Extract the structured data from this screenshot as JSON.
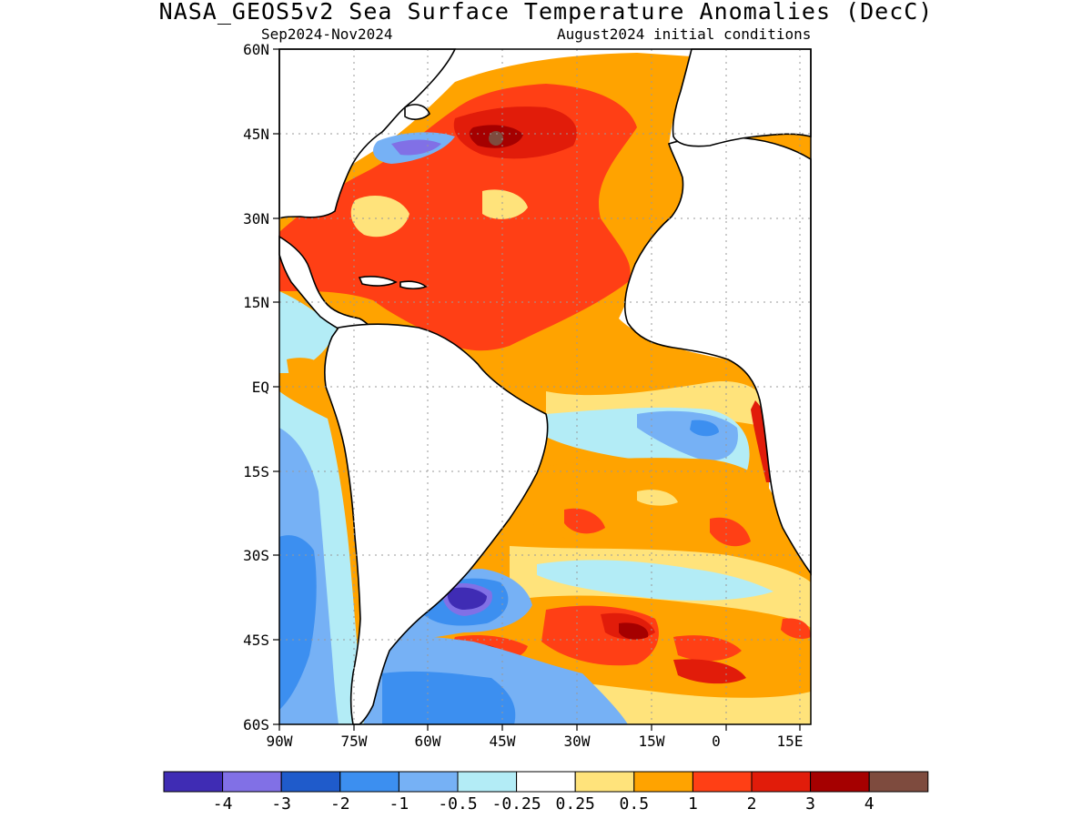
{
  "header": {
    "title": "NASA_GEOS5v2 Sea Surface Temperature Anomalies (DecC)",
    "period": "Sep2024-Nov2024",
    "initial_conditions": "August2024 initial conditions"
  },
  "map": {
    "lat_labels": [
      "60N",
      "45N",
      "30N",
      "15N",
      "EQ",
      "15S",
      "30S",
      "45S",
      "60S"
    ],
    "lat_values": [
      60,
      45,
      30,
      15,
      0,
      -15,
      -30,
      -45,
      -60
    ],
    "lon_labels": [
      "90W",
      "75W",
      "60W",
      "45W",
      "30W",
      "15W",
      "0",
      "15E"
    ],
    "lon_values": [
      -90,
      -75,
      -60,
      -45,
      -30,
      -15,
      0,
      15
    ],
    "lon_range": [
      -90,
      17
    ],
    "lat_range": [
      -60,
      60
    ],
    "grid": true
  },
  "colorbar": {
    "labels": [
      "-4",
      "-3",
      "-2",
      "-1",
      "-0.5",
      "-0.25",
      "0.25",
      "0.5",
      "1",
      "2",
      "3",
      "4"
    ],
    "colors": [
      "#3f2cb4",
      "#8170e6",
      "#1f5bcb",
      "#3c8ff0",
      "#76b1f5",
      "#b3ecf6",
      "#ffffff",
      "#ffe37b",
      "#ffa300",
      "#ff3f15",
      "#e11c0a",
      "#a50000",
      "#7e4b3e"
    ]
  },
  "colors": {
    "land": "#ffffff",
    "coast": "#000000",
    "grid": "#999999"
  }
}
